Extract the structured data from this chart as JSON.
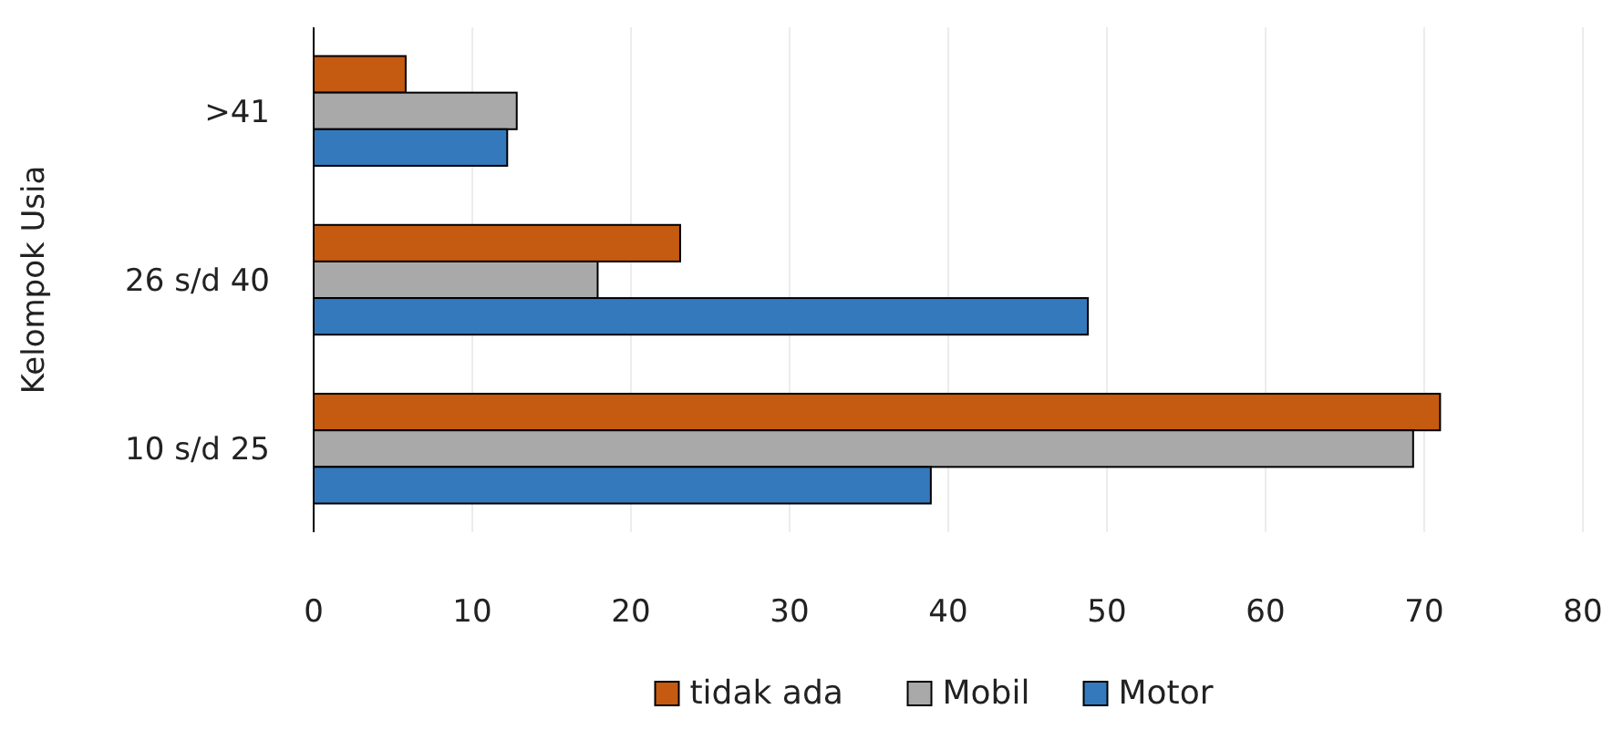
{
  "chart_data": {
    "type": "bar",
    "orientation": "horizontal",
    "ylabel": "Kelompok Usia",
    "categories": [
      ">41",
      "26 s/d 40",
      "10 s/d 25"
    ],
    "series": [
      {
        "name": "tidak ada",
        "color": "#c55a11",
        "values": [
          5.8,
          23.1,
          71.0
        ]
      },
      {
        "name": "Mobil",
        "color": "#a9a9a9",
        "values": [
          12.8,
          17.9,
          69.3
        ]
      },
      {
        "name": "Motor",
        "color": "#3579bd",
        "values": [
          12.2,
          48.8,
          38.9
        ]
      }
    ],
    "xlim": [
      0,
      80
    ],
    "xticks": [
      0,
      10,
      20,
      30,
      40,
      50,
      60,
      70,
      80
    ],
    "grid": "x",
    "legend": "bottom"
  }
}
